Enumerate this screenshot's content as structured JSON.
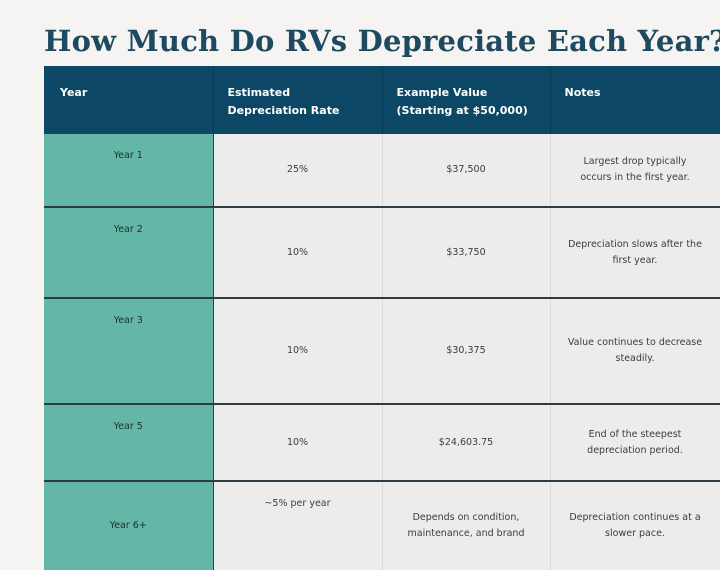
{
  "title": "How Much Do RVs Depreciate Each Year?",
  "table": {
    "headers": [
      "Year",
      "Estimated Depreciation Rate",
      "Example Value (Starting at $50,000)",
      "Notes"
    ],
    "rows": [
      {
        "year": "Year 1",
        "rate": "25%",
        "value": "$37,500",
        "notes": "Largest drop typically occurs in the first year."
      },
      {
        "year": "Year 2",
        "rate": "10%",
        "value": "$33,750",
        "notes": "Depreciation slows after the first year."
      },
      {
        "year": "Year 3",
        "rate": "10%",
        "value": "$30,375",
        "notes": "Value continues to decrease steadily."
      },
      {
        "year": "Year 5",
        "rate": "10%",
        "value": "$24,603.75",
        "notes": "End of the steepest depreciation period."
      },
      {
        "year": "Year 6+",
        "rate": "~5% per year",
        "value": "Depends on condition, maintenance, and brand",
        "notes": "Depreciation continues at a slower pace."
      }
    ]
  },
  "colors": {
    "title": "#1d4a5f",
    "header_bg": "#0d4766",
    "year_column_bg": "#64b7a6",
    "cell_bg": "#ececec"
  }
}
